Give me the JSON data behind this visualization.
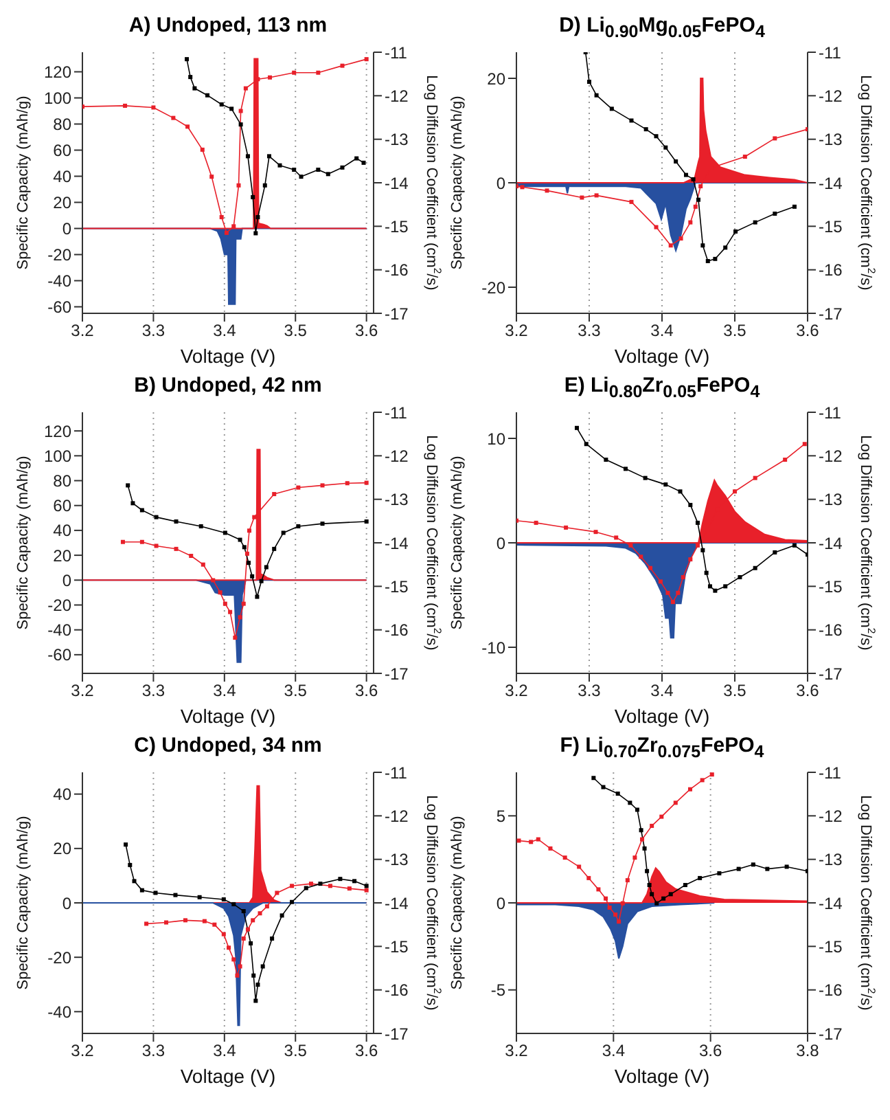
{
  "chart_data": [
    {
      "type": "area",
      "title": "A) Undoped, 113 nm",
      "xlabel": "Voltage (V)",
      "ylabel": "Specific Capacity (mAh/g)",
      "y2label": "Log Diffusion Coefficient (cm$^{2}$/s)",
      "xlim": [
        3.2,
        3.61
      ],
      "xticks": [
        3.2,
        3.3,
        3.4,
        3.5,
        3.6
      ],
      "ylim": [
        -65,
        135
      ],
      "yticks": [
        -60,
        -40,
        -20,
        0,
        20,
        40,
        60,
        80,
        100,
        120
      ],
      "y2lim": [
        -17,
        -11
      ],
      "y2ticks": [
        -17,
        -16,
        -15,
        -14,
        -13,
        -12,
        -11
      ],
      "grid": "x",
      "series": [
        {
          "color": "#2750a0",
          "x": [
            3.2,
            3.38,
            3.39,
            3.395,
            3.4,
            3.405,
            3.406,
            3.415,
            3.416,
            3.423,
            3.425,
            3.6
          ],
          "values": [
            0,
            0,
            -2,
            -8,
            -20,
            -20,
            -58,
            -58,
            -8,
            -8,
            0,
            0
          ]
        },
        {
          "type": "line",
          "axis": "y2",
          "marker": "square",
          "color": "#e8202a",
          "x": [
            3.2,
            3.26,
            3.3,
            3.328,
            3.348,
            3.369,
            3.382,
            3.396,
            3.403,
            3.413,
            3.42,
            3.423,
            3.43,
            3.447,
            3.464,
            3.498,
            3.532,
            3.566,
            3.6
          ],
          "values": [
            -12.25,
            -12.23,
            -12.27,
            -12.51,
            -12.71,
            -13.24,
            -13.86,
            -14.79,
            -15.15,
            -15.0,
            -14.06,
            -12.35,
            -11.83,
            -11.62,
            -11.58,
            -11.47,
            -11.47,
            -11.31,
            -11.16
          ]
        },
        {
          "color": "#e8202a",
          "x": [
            3.2,
            3.44,
            3.441,
            3.442,
            3.447,
            3.448,
            3.455,
            3.46,
            3.465,
            3.6
          ],
          "values": [
            0,
            0,
            0,
            130,
            130,
            4,
            3,
            2,
            0,
            0
          ]
        },
        {
          "type": "line",
          "axis": "y2",
          "marker": "square",
          "color": "#000000",
          "x": [
            3.347,
            3.352,
            3.358,
            3.376,
            3.396,
            3.41,
            3.423,
            3.433,
            3.44,
            3.444,
            3.447,
            3.457,
            3.463,
            3.478,
            3.498,
            3.508,
            3.532,
            3.546,
            3.566,
            3.586,
            3.596
          ],
          "values": [
            -11.16,
            -11.57,
            -11.83,
            -11.99,
            -12.2,
            -12.3,
            -12.66,
            -13.39,
            -14.33,
            -15.16,
            -14.79,
            -14.06,
            -13.39,
            -13.6,
            -13.7,
            -13.86,
            -13.7,
            -13.8,
            -13.65,
            -13.44,
            -13.54
          ]
        }
      ]
    },
    {
      "type": "area",
      "title": "D) Li$_{0.90}$Mg$_{0.05}$FePO$_{4}$",
      "xlabel": "Voltage (V)",
      "ylabel": "Specific Capacity (mAh/g)",
      "y2label": "Log Diffusion Coefficient (cm$^{2}$/s)",
      "xlim": [
        3.2,
        3.6
      ],
      "xticks": [
        3.2,
        3.3,
        3.4,
        3.5,
        3.6
      ],
      "ylim": [
        -25,
        25
      ],
      "yticks": [
        -20,
        0,
        20
      ],
      "y2lim": [
        -17,
        -11
      ],
      "y2ticks": [
        -17,
        -16,
        -15,
        -14,
        -13,
        -12,
        -11
      ],
      "grid": "x",
      "series": [
        {
          "color": "#2750a0",
          "x": [
            3.2,
            3.24,
            3.268,
            3.27,
            3.272,
            3.35,
            3.371,
            3.378,
            3.392,
            3.399,
            3.405,
            3.412,
            3.419,
            3.426,
            3.433,
            3.439,
            3.446,
            3.6
          ],
          "values": [
            -0.7,
            -0.7,
            -0.7,
            -2,
            -0.7,
            -0.7,
            -1,
            -2,
            -4,
            -7,
            -4,
            -10,
            -13,
            -10,
            -5,
            -3,
            0,
            0
          ]
        },
        {
          "type": "line",
          "axis": "y2",
          "marker": "square",
          "color": "#e8202a",
          "x": [
            3.2,
            3.208,
            3.242,
            3.29,
            3.31,
            3.358,
            3.392,
            3.412,
            3.426,
            3.439,
            3.446,
            3.453,
            3.467,
            3.514,
            3.555,
            3.6
          ],
          "values": [
            -14.08,
            -14.1,
            -14.18,
            -14.34,
            -14.29,
            -14.44,
            -15.02,
            -15.44,
            -15.28,
            -14.91,
            -14.55,
            -14.08,
            -13.66,
            -13.4,
            -12.98,
            -12.77
          ]
        },
        {
          "color": "#e8202a",
          "x": [
            3.2,
            3.43,
            3.445,
            3.45,
            3.452,
            3.453,
            3.456,
            3.457,
            3.46,
            3.467,
            3.48,
            3.514,
            3.548,
            3.582,
            3.6
          ],
          "values": [
            0,
            0,
            1,
            4,
            5,
            20,
            20,
            14,
            10,
            5,
            3,
            1.5,
            1,
            0.6,
            0
          ]
        },
        {
          "type": "line",
          "axis": "y2",
          "marker": "square",
          "color": "#000000",
          "x": [
            3.295,
            3.3,
            3.31,
            3.331,
            3.358,
            3.378,
            3.392,
            3.405,
            3.419,
            3.433,
            3.443,
            3.45,
            3.456,
            3.463,
            3.473,
            3.487,
            3.501,
            3.528,
            3.555,
            3.582
          ],
          "values": [
            -11.0,
            -11.68,
            -11.99,
            -12.3,
            -12.57,
            -12.77,
            -12.93,
            -13.19,
            -13.51,
            -13.82,
            -13.92,
            -14.39,
            -15.44,
            -15.8,
            -15.75,
            -15.49,
            -15.12,
            -14.91,
            -14.71,
            -14.55
          ]
        }
      ]
    },
    {
      "type": "area",
      "title": "B) Undoped, 42 nm",
      "xlabel": "Voltage (V)",
      "ylabel": "Specific Capacity (mAh/g)",
      "y2label": "Log Diffusion Coefficient (cm$^{2}$/s)",
      "xlim": [
        3.2,
        3.61
      ],
      "xticks": [
        3.2,
        3.3,
        3.4,
        3.5,
        3.6
      ],
      "ylim": [
        -75,
        135
      ],
      "yticks": [
        -60,
        -40,
        -20,
        0,
        20,
        40,
        60,
        80,
        100,
        120
      ],
      "y2lim": [
        -17,
        -11
      ],
      "y2ticks": [
        -17,
        -16,
        -15,
        -14,
        -13,
        -12,
        -11
      ],
      "grid": "x",
      "series": [
        {
          "color": "#2750a0",
          "x": [
            3.2,
            3.36,
            3.38,
            3.387,
            3.4,
            3.414,
            3.415,
            3.418,
            3.423,
            3.425,
            3.43,
            3.6
          ],
          "values": [
            0,
            0,
            -3,
            -10,
            -12,
            -12,
            -25,
            -66,
            -66,
            -12,
            0,
            0
          ]
        },
        {
          "type": "line",
          "axis": "y2",
          "marker": "square",
          "color": "#e8202a",
          "x": [
            3.257,
            3.284,
            3.304,
            3.332,
            3.353,
            3.37,
            3.384,
            3.394,
            3.401,
            3.408,
            3.415,
            3.422,
            3.427,
            3.432,
            3.435,
            3.442,
            3.449,
            3.47,
            3.504,
            3.538,
            3.573,
            3.6
          ],
          "values": [
            -13.98,
            -13.98,
            -14.07,
            -14.14,
            -14.3,
            -14.5,
            -14.86,
            -15.14,
            -15.4,
            -15.59,
            -16.18,
            -15.71,
            -15.4,
            -14.25,
            -13.72,
            -13.41,
            null,
            -12.88,
            -12.73,
            -12.68,
            -12.63,
            -12.62
          ]
        },
        {
          "color": "#e8202a",
          "x": [
            3.2,
            3.445,
            3.446,
            3.45,
            3.451,
            3.455,
            3.46,
            3.47,
            3.6
          ],
          "values": [
            0,
            0,
            105,
            105,
            5,
            4,
            2,
            0,
            0
          ]
        },
        {
          "type": "line",
          "axis": "y2",
          "marker": "square",
          "color": "#000000",
          "x": [
            3.264,
            3.271,
            3.284,
            3.304,
            3.332,
            3.367,
            3.401,
            3.422,
            3.428,
            3.434,
            3.439,
            3.446,
            3.452,
            3.459,
            3.47,
            3.483,
            3.504,
            3.538,
            3.6
          ],
          "values": [
            -12.68,
            -13.09,
            -13.25,
            -13.41,
            -13.51,
            -13.62,
            -13.77,
            -13.93,
            -14.1,
            -14.46,
            -14.77,
            -15.24,
            -14.88,
            -14.56,
            -14.14,
            -13.77,
            -13.62,
            -13.56,
            -13.51
          ]
        }
      ]
    },
    {
      "type": "area",
      "title": "E) Li$_{0.80}$Zr$_{0.05}$FePO$_{4}$",
      "xlabel": "Voltage (V)",
      "ylabel": "Specific Capacity (mAh/g)",
      "y2label": "Log Diffusion Coefficient (cm$^{2}$/s)",
      "xlim": [
        3.2,
        3.6
      ],
      "xticks": [
        3.2,
        3.3,
        3.4,
        3.5,
        3.6
      ],
      "ylim": [
        -12.5,
        12.5
      ],
      "yticks": [
        -10,
        0,
        10
      ],
      "y2lim": [
        -17,
        -11
      ],
      "y2ticks": [
        -17,
        -16,
        -15,
        -14,
        -13,
        -12,
        -11
      ],
      "grid": "x",
      "series": [
        {
          "color": "#2750a0",
          "x": [
            3.2,
            3.323,
            3.35,
            3.364,
            3.377,
            3.391,
            3.401,
            3.405,
            3.41,
            3.412,
            3.416,
            3.418,
            3.426,
            3.432,
            3.442,
            3.452,
            3.6
          ],
          "values": [
            -0.2,
            -0.3,
            -0.5,
            -1,
            -2,
            -3.5,
            -5,
            -7.2,
            -7.2,
            -9.1,
            -9.1,
            -5.8,
            -5.8,
            -3,
            -1,
            0,
            0
          ]
        },
        {
          "color": "#e8202a",
          "x": [
            3.2,
            3.45,
            3.456,
            3.463,
            3.472,
            3.476,
            3.487,
            3.5,
            3.514,
            3.541,
            3.569,
            3.6
          ],
          "values": [
            0,
            0,
            2,
            4,
            6,
            5.5,
            4.5,
            3,
            2,
            0.8,
            0.3,
            0.2
          ]
        },
        {
          "type": "line",
          "axis": "y2",
          "marker": "square",
          "color": "#e8202a",
          "x": [
            3.2,
            3.227,
            3.268,
            3.309,
            3.337,
            3.357,
            3.371,
            3.384,
            3.398,
            3.408,
            3.415,
            3.422,
            3.429,
            3.439,
            3.449,
            3.463,
            3.476,
            3.5,
            3.528,
            3.569,
            3.596
          ],
          "values": [
            -13.49,
            -13.54,
            -13.65,
            -13.75,
            -13.88,
            -14.06,
            -14.32,
            -14.58,
            -14.89,
            -15.15,
            -15.36,
            -15.15,
            -14.79,
            -14.38,
            -14.06,
            -13.7,
            -13.23,
            -12.82,
            -12.51,
            -12.09,
            -11.73
          ]
        },
        {
          "type": "line",
          "axis": "y2",
          "marker": "square",
          "color": "#000000",
          "x": [
            3.283,
            3.296,
            3.323,
            3.35,
            3.377,
            3.405,
            3.425,
            3.439,
            3.449,
            3.456,
            3.461,
            3.466,
            3.473,
            3.487,
            3.507,
            3.528,
            3.555,
            3.582,
            3.6
          ],
          "values": [
            -11.36,
            -11.73,
            -12.09,
            -12.3,
            -12.51,
            -12.66,
            -12.82,
            -13.13,
            -13.54,
            -14.17,
            -14.69,
            -15.0,
            -15.1,
            -15.0,
            -14.79,
            -14.58,
            -14.22,
            -14.06,
            -14.27
          ]
        }
      ]
    },
    {
      "type": "area",
      "title": "C) Undoped, 34 nm",
      "xlabel": "Voltage (V)",
      "ylabel": "Specific Capacity (mAh/g)",
      "y2label": "Log Diffusion Coefficient (cm$^{2}$/s)",
      "xlim": [
        3.2,
        3.61
      ],
      "xticks": [
        3.2,
        3.3,
        3.4,
        3.5,
        3.6
      ],
      "ylim": [
        -48,
        48
      ],
      "yticks": [
        -40,
        -20,
        0,
        20,
        40
      ],
      "y2lim": [
        -17,
        -11
      ],
      "y2ticks": [
        -17,
        -16,
        -15,
        -14,
        -13,
        -12,
        -11
      ],
      "grid": "x",
      "series": [
        {
          "color": "#e8202a",
          "x": [
            3.2,
            3.435,
            3.44,
            3.443,
            3.446,
            3.449,
            3.451,
            3.46,
            3.47,
            3.48,
            3.6
          ],
          "values": [
            0,
            0,
            2,
            20,
            43,
            43,
            12,
            4,
            1,
            0,
            0
          ]
        },
        {
          "color": "#2750a0",
          "x": [
            3.2,
            3.384,
            3.399,
            3.406,
            3.413,
            3.416,
            3.419,
            3.421,
            3.423,
            3.43,
            3.44,
            3.454,
            3.6
          ],
          "values": [
            0,
            0,
            -2,
            -5,
            -12,
            -20,
            -45,
            -45,
            -12,
            -5,
            -2,
            0,
            0
          ]
        },
        {
          "type": "line",
          "axis": "y2",
          "marker": "square",
          "color": "#e8202a",
          "x": [
            3.29,
            3.318,
            3.345,
            3.372,
            3.386,
            3.399,
            3.406,
            3.413,
            3.418,
            3.422,
            3.427,
            3.433,
            3.44,
            3.45,
            3.46,
            3.474,
            3.495,
            3.522,
            3.549,
            3.576,
            3.6
          ],
          "values": [
            -14.48,
            -14.45,
            -14.4,
            -14.42,
            -14.5,
            -14.72,
            -15.03,
            -15.3,
            -15.67,
            -15.46,
            -14.82,
            -14.61,
            -14.4,
            -14.24,
            -14.08,
            -13.77,
            -13.61,
            -13.56,
            -13.61,
            -13.67,
            -13.71
          ]
        },
        {
          "type": "line",
          "axis": "y2",
          "marker": "square",
          "color": "#000000",
          "x": [
            3.261,
            3.267,
            3.273,
            3.284,
            3.303,
            3.331,
            3.365,
            3.399,
            3.413,
            3.427,
            3.437,
            3.441,
            3.444,
            3.447,
            3.454,
            3.467,
            3.481,
            3.495,
            3.515,
            3.535,
            3.563,
            3.583,
            3.6
          ],
          "values": [
            -12.66,
            -13.13,
            -13.5,
            -13.71,
            -13.77,
            -13.82,
            -13.87,
            -13.92,
            -14.03,
            -14.19,
            -14.93,
            -15.67,
            -16.25,
            -15.88,
            -15.46,
            -14.82,
            -14.29,
            -13.98,
            -13.66,
            -13.56,
            -13.45,
            -13.5,
            -13.61
          ]
        }
      ]
    },
    {
      "type": "area",
      "title": "F) Li$_{0.70}$Zr$_{0.075}$FePO$_{4}$",
      "xlabel": "Voltage (V)",
      "ylabel": "Specific Capacity (mAh/g)",
      "y2label": "Log Diffusion Coefficient (cm$^{2}$/s)",
      "xlim": [
        3.2,
        3.8
      ],
      "xticks": [
        3.2,
        3.4,
        3.6,
        3.8
      ],
      "ylim": [
        -7.5,
        7.5
      ],
      "yticks": [
        -5,
        0,
        5
      ],
      "y2lim": [
        -17,
        -11
      ],
      "y2ticks": [
        -17,
        -16,
        -15,
        -14,
        -13,
        -12,
        -11
      ],
      "grid": "x",
      "series": [
        {
          "color": "#2750a0",
          "x": [
            3.2,
            3.28,
            3.329,
            3.359,
            3.379,
            3.394,
            3.404,
            3.411,
            3.419,
            3.429,
            3.449,
            3.479,
            3.538,
            3.608
          ],
          "values": [
            -0.1,
            -0.1,
            -0.2,
            -0.4,
            -0.8,
            -1.5,
            -2.2,
            -3.2,
            -2.5,
            -1.2,
            -0.5,
            -0.2,
            -0.1,
            0
          ]
        },
        {
          "type": "line",
          "axis": "y2",
          "marker": "square",
          "color": "#e8202a",
          "x": [
            3.205,
            3.23,
            3.245,
            3.27,
            3.3,
            3.329,
            3.349,
            3.369,
            3.384,
            3.392,
            3.404,
            3.411,
            3.419,
            3.429,
            3.444,
            3.459,
            3.479,
            3.499,
            3.528,
            3.558,
            3.583,
            3.603
          ],
          "values": [
            -12.57,
            -12.6,
            -12.54,
            -12.75,
            -12.96,
            -13.17,
            -13.43,
            -13.69,
            -13.9,
            -14.11,
            -14.27,
            -14.43,
            -14.01,
            -13.48,
            -12.96,
            -12.54,
            -12.23,
            -12.02,
            -11.7,
            -11.39,
            -11.18,
            -11.05
          ]
        },
        {
          "color": "#e8202a",
          "x": [
            3.2,
            3.459,
            3.469,
            3.479,
            3.487,
            3.494,
            3.508,
            3.528,
            3.578,
            3.628,
            3.8
          ],
          "values": [
            0,
            0,
            0.5,
            1.5,
            2.0,
            1.8,
            1.2,
            0.8,
            0.4,
            0.2,
            0.1
          ]
        },
        {
          "type": "line",
          "axis": "y2",
          "marker": "square",
          "color": "#000000",
          "x": [
            3.359,
            3.379,
            3.409,
            3.434,
            3.449,
            3.457,
            3.464,
            3.469,
            3.474,
            3.479,
            3.489,
            3.503,
            3.518,
            3.548,
            3.578,
            3.618,
            3.658,
            3.688,
            3.717,
            3.757,
            3.8
          ],
          "values": [
            -11.13,
            -11.34,
            -11.49,
            -11.7,
            -11.86,
            -12.33,
            -12.75,
            -13.27,
            -13.59,
            -13.8,
            -14.01,
            -13.9,
            -13.8,
            -13.59,
            -13.43,
            -13.32,
            -13.22,
            -13.12,
            -13.22,
            -13.17,
            -13.27
          ]
        }
      ]
    }
  ]
}
